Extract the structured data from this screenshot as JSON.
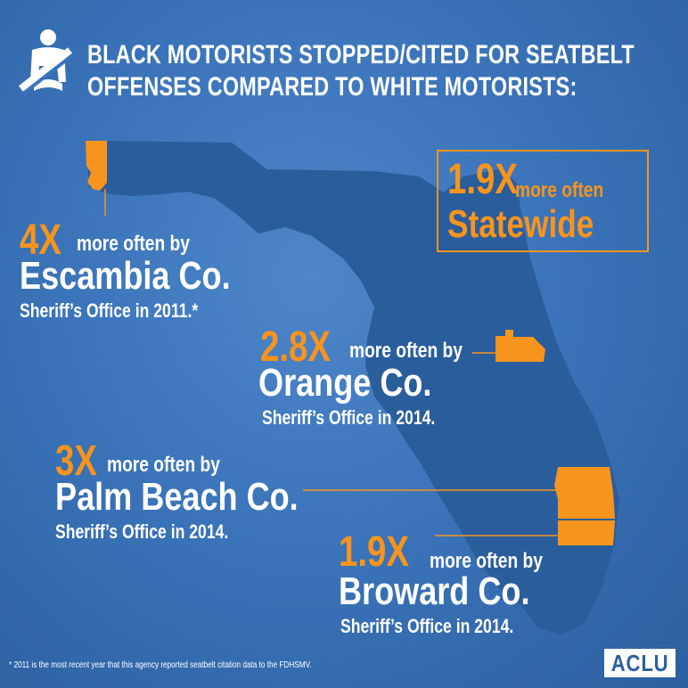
{
  "title": {
    "line1": "BLACK MOTORISTS STOPPED/CITED FOR SEATBELT",
    "line2": "OFFENSES COMPARED TO WHITE MOTORISTS:"
  },
  "statewide": {
    "value": "1.9X",
    "suffix": "more often",
    "label": "Statewide"
  },
  "callouts": [
    {
      "value": "4X",
      "suffix": "more often by",
      "county": "Escambia Co.",
      "office": "Sheriff’s Office in 2011.*"
    },
    {
      "value": "2.8X",
      "suffix": "more often by",
      "county": "Orange Co.",
      "office": "Sheriff’s Office in 2014."
    },
    {
      "value": "3X",
      "suffix": "more often  by",
      "county": "Palm Beach Co.",
      "office": "Sheriff’s Office in 2014."
    },
    {
      "value": "1.9X",
      "suffix": "more often by",
      "county": "Broward Co.",
      "office": "Sheriff’s Office in 2014."
    }
  ],
  "footnote": "* 2011 is the most recent year that this agency reported seatbelt citation data to the FDHSMV.",
  "logo": "ACLU",
  "colors": {
    "background": "#3b74ba",
    "state_fill": "#2a5d9c",
    "highlight": "#f7941d",
    "text": "#ffffff"
  },
  "icons": {
    "header": "seatbelt-icon"
  }
}
